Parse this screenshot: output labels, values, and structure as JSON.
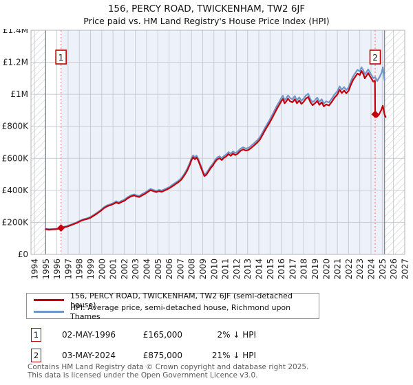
{
  "title": "156, PERCY ROAD, TWICKENHAM, TW2 6JF",
  "subtitle": "Price paid vs. HM Land Registry's House Price Index (HPI)",
  "legend": {
    "series1": "156, PERCY ROAD, TWICKENHAM, TW2 6JF (semi-detached house)",
    "series2": "HPI: Average price, semi-detached house, Richmond upon Thames"
  },
  "transactions": [
    {
      "n": "1",
      "date": "02-MAY-1996",
      "price": "£165,000",
      "hpi": "2% ↓ HPI"
    },
    {
      "n": "2",
      "date": "03-MAY-2024",
      "price": "£875,000",
      "hpi": "21% ↓ HPI"
    }
  ],
  "footer": {
    "line1": "Contains HM Land Registry data © Crown copyright and database right 2025.",
    "line2": "This data is licensed under the Open Government Licence v3.0."
  },
  "colors": {
    "price_paid_red": "#c4000a",
    "hpi_blue": "#6e96c8",
    "event_line_pink": "#ee8181",
    "marker_box_red": "#c00000",
    "shade_blue": "#edf1fa",
    "grid": "#c9ccd2",
    "hatch": "#c3c6cc",
    "plot_border": "#b3b6bd",
    "divider": "#85898f",
    "axis_text": "#222222"
  },
  "chart_data": {
    "type": "line",
    "unit": "GBP_thousands",
    "xlim": [
      1993.7,
      2027.0
    ],
    "ylim": [
      0,
      1400
    ],
    "grid": true,
    "legend_position": "bottom",
    "x_ticks": [
      1994,
      1995,
      1996,
      1997,
      1998,
      1999,
      2000,
      2001,
      2002,
      2003,
      2004,
      2005,
      2006,
      2007,
      2008,
      2009,
      2010,
      2011,
      2012,
      2013,
      2014,
      2015,
      2016,
      2017,
      2018,
      2019,
      2020,
      2021,
      2022,
      2023,
      2024,
      2025,
      2026,
      2027
    ],
    "y_ticks": [
      {
        "label": "£0",
        "value": 0
      },
      {
        "label": "£200K",
        "value": 200
      },
      {
        "label": "£400K",
        "value": 400
      },
      {
        "label": "£600K",
        "value": 600
      },
      {
        "label": "£800K",
        "value": 800
      },
      {
        "label": "£1M",
        "value": 1000
      },
      {
        "label": "£1.2M",
        "value": 1200
      },
      {
        "label": "£1.4M",
        "value": 1400
      }
    ],
    "regions": {
      "shaded": [
        1996.37,
        2025.2
      ],
      "hatched": [
        [
          1993.7,
          1995.0
        ],
        [
          2025.2,
          2027.0
        ]
      ],
      "dividers": [
        1995.0,
        2025.2
      ]
    },
    "events": [
      {
        "label": "1",
        "year": 1996.37,
        "value": 165
      },
      {
        "label": "2",
        "year": 2024.37,
        "value": 875
      }
    ],
    "series": [
      {
        "name": "hpi",
        "color_key": "hpi_blue",
        "points": [
          [
            1995.0,
            160
          ],
          [
            1995.3,
            157
          ],
          [
            1995.6,
            159
          ],
          [
            1995.9,
            160
          ],
          [
            1996.2,
            163
          ],
          [
            1996.37,
            168
          ],
          [
            1996.6,
            172
          ],
          [
            1996.9,
            177
          ],
          [
            1997.2,
            185
          ],
          [
            1997.5,
            193
          ],
          [
            1997.8,
            201
          ],
          [
            1998.1,
            212
          ],
          [
            1998.4,
            220
          ],
          [
            1998.7,
            226
          ],
          [
            1999.0,
            234
          ],
          [
            1999.3,
            247
          ],
          [
            1999.6,
            261
          ],
          [
            1999.9,
            277
          ],
          [
            2000.2,
            295
          ],
          [
            2000.5,
            307
          ],
          [
            2000.8,
            314
          ],
          [
            2001.1,
            323
          ],
          [
            2001.3,
            332
          ],
          [
            2001.5,
            324
          ],
          [
            2001.75,
            334
          ],
          [
            2002.0,
            341
          ],
          [
            2002.3,
            357
          ],
          [
            2002.6,
            369
          ],
          [
            2002.9,
            375
          ],
          [
            2003.1,
            369
          ],
          [
            2003.35,
            365
          ],
          [
            2003.6,
            377
          ],
          [
            2003.85,
            386
          ],
          [
            2004.1,
            398
          ],
          [
            2004.35,
            409
          ],
          [
            2004.6,
            403
          ],
          [
            2004.85,
            397
          ],
          [
            2005.1,
            403
          ],
          [
            2005.35,
            399
          ],
          [
            2005.6,
            407
          ],
          [
            2005.85,
            415
          ],
          [
            2006.1,
            424
          ],
          [
            2006.35,
            437
          ],
          [
            2006.6,
            449
          ],
          [
            2006.85,
            461
          ],
          [
            2007.1,
            477
          ],
          [
            2007.35,
            502
          ],
          [
            2007.6,
            532
          ],
          [
            2007.85,
            572
          ],
          [
            2008.0,
            601
          ],
          [
            2008.15,
            619
          ],
          [
            2008.3,
            606
          ],
          [
            2008.45,
            617
          ],
          [
            2008.6,
            598
          ],
          [
            2008.8,
            562
          ],
          [
            2009.0,
            524
          ],
          [
            2009.15,
            499
          ],
          [
            2009.3,
            506
          ],
          [
            2009.5,
            526
          ],
          [
            2009.7,
            549
          ],
          [
            2009.9,
            566
          ],
          [
            2010.1,
            589
          ],
          [
            2010.3,
            606
          ],
          [
            2010.5,
            613
          ],
          [
            2010.7,
            601
          ],
          [
            2010.9,
            615
          ],
          [
            2011.1,
            624
          ],
          [
            2011.3,
            639
          ],
          [
            2011.5,
            629
          ],
          [
            2011.7,
            643
          ],
          [
            2011.9,
            633
          ],
          [
            2012.1,
            641
          ],
          [
            2012.35,
            659
          ],
          [
            2012.6,
            669
          ],
          [
            2012.85,
            661
          ],
          [
            2013.1,
            666
          ],
          [
            2013.35,
            681
          ],
          [
            2013.6,
            696
          ],
          [
            2013.85,
            712
          ],
          [
            2014.1,
            732
          ],
          [
            2014.35,
            764
          ],
          [
            2014.6,
            797
          ],
          [
            2014.85,
            827
          ],
          [
            2015.1,
            857
          ],
          [
            2015.35,
            892
          ],
          [
            2015.6,
            927
          ],
          [
            2015.85,
            957
          ],
          [
            2016.0,
            976
          ],
          [
            2016.15,
            991
          ],
          [
            2016.3,
            963
          ],
          [
            2016.45,
            976
          ],
          [
            2016.6,
            993
          ],
          [
            2016.8,
            976
          ],
          [
            2017.0,
            969
          ],
          [
            2017.2,
            989
          ],
          [
            2017.4,
            963
          ],
          [
            2017.6,
            981
          ],
          [
            2017.8,
            959
          ],
          [
            2018.0,
            973
          ],
          [
            2018.2,
            993
          ],
          [
            2018.4,
            1003
          ],
          [
            2018.6,
            969
          ],
          [
            2018.8,
            951
          ],
          [
            2019.0,
            963
          ],
          [
            2019.2,
            979
          ],
          [
            2019.4,
            953
          ],
          [
            2019.6,
            969
          ],
          [
            2019.8,
            943
          ],
          [
            2020.0,
            956
          ],
          [
            2020.25,
            949
          ],
          [
            2020.5,
            973
          ],
          [
            2020.75,
            999
          ],
          [
            2021.0,
            1019
          ],
          [
            2021.2,
            1049
          ],
          [
            2021.4,
            1029
          ],
          [
            2021.6,
            1045
          ],
          [
            2021.8,
            1027
          ],
          [
            2022.0,
            1043
          ],
          [
            2022.2,
            1081
          ],
          [
            2022.4,
            1111
          ],
          [
            2022.6,
            1133
          ],
          [
            2022.8,
            1153
          ],
          [
            2023.0,
            1143
          ],
          [
            2023.15,
            1169
          ],
          [
            2023.3,
            1151
          ],
          [
            2023.45,
            1123
          ],
          [
            2023.6,
            1139
          ],
          [
            2023.75,
            1156
          ],
          [
            2023.9,
            1136
          ],
          [
            2024.05,
            1119
          ],
          [
            2024.2,
            1101
          ],
          [
            2024.37,
            1107
          ],
          [
            2024.55,
            1083
          ],
          [
            2024.75,
            1106
          ],
          [
            2024.95,
            1136
          ],
          [
            2025.05,
            1168
          ],
          [
            2025.15,
            1120
          ],
          [
            2025.2,
            1088
          ]
        ]
      },
      {
        "name": "price_paid",
        "color_key": "price_paid_red",
        "points": [
          [
            1995.0,
            157
          ],
          [
            1995.3,
            154
          ],
          [
            1995.6,
            156
          ],
          [
            1995.9,
            157
          ],
          [
            1996.2,
            160
          ],
          [
            1996.37,
            165
          ],
          [
            1996.6,
            169
          ],
          [
            1996.9,
            173
          ],
          [
            1997.2,
            181
          ],
          [
            1997.5,
            189
          ],
          [
            1997.8,
            197
          ],
          [
            1998.1,
            208
          ],
          [
            1998.4,
            216
          ],
          [
            1998.7,
            221
          ],
          [
            1999.0,
            229
          ],
          [
            1999.3,
            242
          ],
          [
            1999.6,
            256
          ],
          [
            1999.9,
            271
          ],
          [
            2000.2,
            289
          ],
          [
            2000.5,
            301
          ],
          [
            2000.8,
            308
          ],
          [
            2001.1,
            317
          ],
          [
            2001.3,
            325
          ],
          [
            2001.5,
            318
          ],
          [
            2001.75,
            327
          ],
          [
            2002.0,
            334
          ],
          [
            2002.3,
            350
          ],
          [
            2002.6,
            362
          ],
          [
            2002.9,
            368
          ],
          [
            2003.1,
            362
          ],
          [
            2003.35,
            358
          ],
          [
            2003.6,
            369
          ],
          [
            2003.85,
            378
          ],
          [
            2004.1,
            390
          ],
          [
            2004.35,
            401
          ],
          [
            2004.6,
            395
          ],
          [
            2004.85,
            389
          ],
          [
            2005.1,
            395
          ],
          [
            2005.35,
            391
          ],
          [
            2005.6,
            399
          ],
          [
            2005.85,
            407
          ],
          [
            2006.1,
            416
          ],
          [
            2006.35,
            428
          ],
          [
            2006.6,
            440
          ],
          [
            2006.85,
            452
          ],
          [
            2007.1,
            467
          ],
          [
            2007.35,
            492
          ],
          [
            2007.6,
            521
          ],
          [
            2007.85,
            561
          ],
          [
            2008.0,
            589
          ],
          [
            2008.15,
            607
          ],
          [
            2008.3,
            594
          ],
          [
            2008.45,
            605
          ],
          [
            2008.6,
            586
          ],
          [
            2008.8,
            551
          ],
          [
            2009.0,
            514
          ],
          [
            2009.15,
            489
          ],
          [
            2009.3,
            496
          ],
          [
            2009.5,
            515
          ],
          [
            2009.7,
            538
          ],
          [
            2009.9,
            555
          ],
          [
            2010.1,
            577
          ],
          [
            2010.3,
            594
          ],
          [
            2010.5,
            601
          ],
          [
            2010.7,
            589
          ],
          [
            2010.9,
            603
          ],
          [
            2011.1,
            612
          ],
          [
            2011.3,
            626
          ],
          [
            2011.5,
            616
          ],
          [
            2011.7,
            630
          ],
          [
            2011.9,
            620
          ],
          [
            2012.1,
            628
          ],
          [
            2012.35,
            646
          ],
          [
            2012.6,
            656
          ],
          [
            2012.85,
            648
          ],
          [
            2013.1,
            653
          ],
          [
            2013.35,
            667
          ],
          [
            2013.6,
            682
          ],
          [
            2013.85,
            698
          ],
          [
            2014.1,
            717
          ],
          [
            2014.35,
            749
          ],
          [
            2014.6,
            781
          ],
          [
            2014.85,
            810
          ],
          [
            2015.1,
            840
          ],
          [
            2015.35,
            874
          ],
          [
            2015.6,
            908
          ],
          [
            2015.85,
            938
          ],
          [
            2016.0,
            956
          ],
          [
            2016.15,
            971
          ],
          [
            2016.3,
            944
          ],
          [
            2016.45,
            956
          ],
          [
            2016.6,
            973
          ],
          [
            2016.8,
            956
          ],
          [
            2017.0,
            950
          ],
          [
            2017.2,
            969
          ],
          [
            2017.4,
            944
          ],
          [
            2017.6,
            961
          ],
          [
            2017.8,
            940
          ],
          [
            2018.0,
            954
          ],
          [
            2018.2,
            973
          ],
          [
            2018.4,
            983
          ],
          [
            2018.6,
            950
          ],
          [
            2018.8,
            932
          ],
          [
            2019.0,
            944
          ],
          [
            2019.2,
            959
          ],
          [
            2019.4,
            934
          ],
          [
            2019.6,
            950
          ],
          [
            2019.8,
            924
          ],
          [
            2020.0,
            937
          ],
          [
            2020.25,
            930
          ],
          [
            2020.5,
            953
          ],
          [
            2020.75,
            979
          ],
          [
            2021.0,
            999
          ],
          [
            2021.2,
            1028
          ],
          [
            2021.4,
            1008
          ],
          [
            2021.6,
            1024
          ],
          [
            2021.8,
            1006
          ],
          [
            2022.0,
            1022
          ],
          [
            2022.2,
            1059
          ],
          [
            2022.4,
            1089
          ],
          [
            2022.6,
            1110
          ],
          [
            2022.8,
            1130
          ],
          [
            2023.0,
            1120
          ],
          [
            2023.15,
            1146
          ],
          [
            2023.3,
            1128
          ],
          [
            2023.45,
            1100
          ],
          [
            2023.6,
            1116
          ],
          [
            2023.75,
            1133
          ],
          [
            2023.9,
            1113
          ],
          [
            2024.05,
            1097
          ],
          [
            2024.2,
            1079
          ],
          [
            2024.35,
            1085
          ],
          [
            2024.37,
            875
          ],
          [
            2024.5,
            858
          ],
          [
            2024.7,
            872
          ],
          [
            2024.9,
            900
          ],
          [
            2025.05,
            928
          ],
          [
            2025.2,
            875
          ],
          [
            2025.3,
            858
          ]
        ]
      }
    ]
  }
}
